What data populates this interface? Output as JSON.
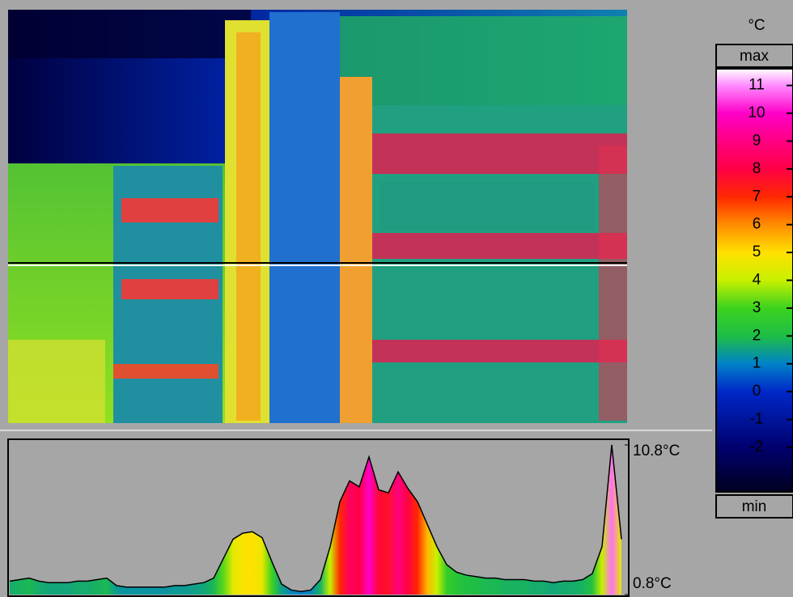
{
  "colorbar": {
    "unit": "°C",
    "max_label": "max",
    "min_label": "min",
    "ylim": [
      -3.6,
      11.6
    ],
    "ticks": [
      11,
      10,
      9,
      8,
      7,
      6,
      5,
      4,
      3,
      2,
      1,
      0,
      -1,
      -2
    ]
  },
  "chart_data": {
    "type": "area",
    "values": [
      1.7,
      1.8,
      1.9,
      1.7,
      1.6,
      1.6,
      1.6,
      1.7,
      1.7,
      1.8,
      1.9,
      1.4,
      1.3,
      1.3,
      1.3,
      1.3,
      1.3,
      1.4,
      1.4,
      1.5,
      1.6,
      1.9,
      3.2,
      4.5,
      4.9,
      5.0,
      4.6,
      3.0,
      1.5,
      1.1,
      1.0,
      1.1,
      1.8,
      4.0,
      7.0,
      8.4,
      8.0,
      10.0,
      7.8,
      7.6,
      9.0,
      7.9,
      7.0,
      5.5,
      4.0,
      2.8,
      2.3,
      2.1,
      2.0,
      1.9,
      1.9,
      1.8,
      1.8,
      1.8,
      1.7,
      1.7,
      1.6,
      1.7,
      1.7,
      1.8,
      2.2,
      4.0,
      10.8,
      4.5
    ],
    "ylim": [
      0.8,
      10.8
    ],
    "yticks": [
      {
        "value": 10.8,
        "label": "10.8°C"
      },
      {
        "value": 0.8,
        "label": "0.8°C"
      }
    ]
  }
}
